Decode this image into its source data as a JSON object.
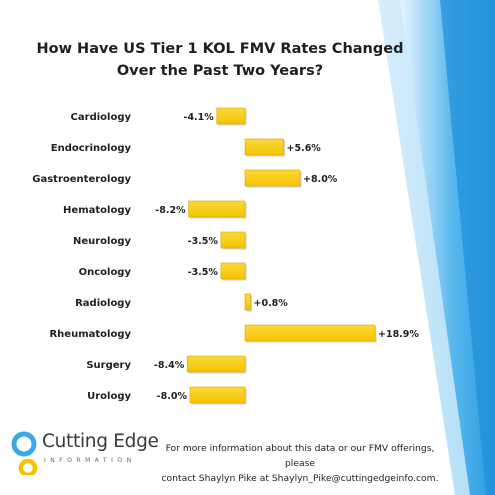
{
  "chart_data": {
    "type": "bar",
    "orientation": "horizontal",
    "title_line1": "How Have US Tier 1 KOL FMV Rates Changed",
    "title_line2": "Over the Past Two Years?",
    "categories": [
      "Cardiology",
      "Endocrinology",
      "Gastroenterology",
      "Hematology",
      "Neurology",
      "Oncology",
      "Radiology",
      "Rheumatology",
      "Surgery",
      "Urology"
    ],
    "values": [
      -4.1,
      5.6,
      8.0,
      -8.2,
      -3.5,
      -3.5,
      0.8,
      18.9,
      -8.4,
      -8.0
    ],
    "data_labels": [
      "-4.1%",
      "+5.6%",
      "+8.0%",
      "-8.2%",
      "-3.5%",
      "-3.5%",
      "+0.8%",
      "+18.9%",
      "-8.4%",
      "-8.0%"
    ],
    "xlim": [
      -9,
      20
    ],
    "grid": false,
    "bar_color": "#f5c400"
  },
  "footer": {
    "logo_name": "Cutting Edge",
    "logo_sub": "INFORMATION",
    "line1": "For more information about this data or our FMV offerings, please",
    "line2": "contact Shaylyn Pike at Shaylyn_Pike@cuttingedgeinfo.com."
  }
}
